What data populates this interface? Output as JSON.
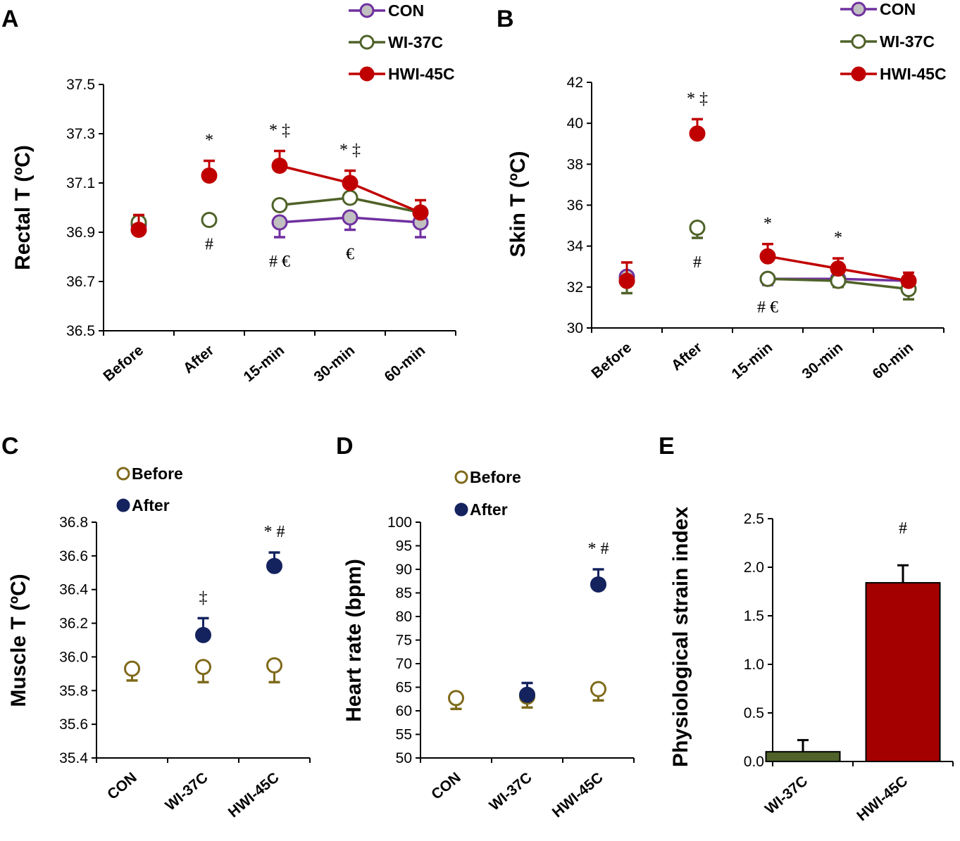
{
  "chart_data": [
    {
      "panel": "A",
      "type": "line",
      "ylabel": "Rectal T (ºC)",
      "ylim": [
        36.5,
        37.5
      ],
      "yticks": [
        "36.5",
        "36.7",
        "36.9",
        "37.1",
        "37.3",
        "37.5"
      ],
      "categories": [
        "Before",
        "After",
        "15-min",
        "30-min",
        "60-min"
      ],
      "legend_position": "top-right",
      "series": [
        {
          "name": "CON",
          "color": "#7030a0",
          "fill": "#c0c0c0",
          "values": [
            36.93,
            null,
            36.94,
            36.96,
            36.94
          ],
          "sem": [
            0.02,
            null,
            0.06,
            0.05,
            0.06
          ],
          "err_dir": "down",
          "connect_from": 2
        },
        {
          "name": "WI-37C",
          "color": "#4f6228",
          "fill": "#ffffff",
          "values": [
            36.94,
            36.95,
            37.01,
            37.04,
            36.98
          ],
          "sem": [
            0.01,
            0.0,
            0.0,
            0.0,
            0.0
          ],
          "err_dir": "up",
          "connect_from": 2
        },
        {
          "name": "HWI-45C",
          "color": "#c00000",
          "fill": "#c00000",
          "values": [
            36.91,
            37.13,
            37.17,
            37.1,
            36.98
          ],
          "sem": [
            0.06,
            0.06,
            0.06,
            0.05,
            0.05
          ],
          "err_dir": "up",
          "connect_from": 2
        }
      ],
      "annotations": [
        {
          "category": "After",
          "series": "HWI-45C",
          "side": "above",
          "text": "*"
        },
        {
          "category": "After",
          "series": "WI-37C",
          "side": "below",
          "text": "#"
        },
        {
          "category": "15-min",
          "series": "HWI-45C",
          "side": "above",
          "text": "* ‡"
        },
        {
          "category": "15-min",
          "series": "CON",
          "side": "below",
          "text": "# €"
        },
        {
          "category": "30-min",
          "series": "HWI-45C",
          "side": "above",
          "text": "* ‡"
        },
        {
          "category": "30-min",
          "series": "CON",
          "side": "below",
          "text": "€"
        }
      ]
    },
    {
      "panel": "B",
      "type": "line",
      "ylabel": "Skin T (ºC)",
      "ylim": [
        30,
        42
      ],
      "yticks": [
        "30",
        "32",
        "34",
        "36",
        "38",
        "40",
        "42"
      ],
      "categories": [
        "Before",
        "After",
        "15-min",
        "30-min",
        "60-min"
      ],
      "legend_position": "top-right",
      "series": [
        {
          "name": "CON",
          "color": "#7030a0",
          "fill": "#c0c0c0",
          "values": [
            32.5,
            null,
            32.4,
            32.4,
            32.3
          ],
          "sem": [
            0.4,
            null,
            0.3,
            0.3,
            0.4
          ],
          "err_dir": "down",
          "connect_from": 2
        },
        {
          "name": "WI-37C",
          "color": "#4f6228",
          "fill": "#ffffff",
          "values": [
            32.3,
            34.9,
            32.4,
            32.3,
            31.9
          ],
          "sem": [
            0.6,
            0.5,
            0.2,
            0.3,
            0.5
          ],
          "err_dir": "down",
          "connect_from": 2
        },
        {
          "name": "HWI-45C",
          "color": "#c00000",
          "fill": "#c00000",
          "values": [
            32.3,
            39.5,
            33.5,
            32.9,
            32.3
          ],
          "sem": [
            0.9,
            0.7,
            0.6,
            0.5,
            0.4
          ],
          "err_dir": "up",
          "connect_from": 2
        }
      ],
      "annotations": [
        {
          "category": "After",
          "series": "HWI-45C",
          "side": "above",
          "text": "* ‡"
        },
        {
          "category": "After",
          "series": "WI-37C",
          "side": "below",
          "text": "#"
        },
        {
          "category": "15-min",
          "series": "HWI-45C",
          "side": "above",
          "text": "*"
        },
        {
          "category": "15-min",
          "series": "WI-37C",
          "side": "below",
          "text": "# €"
        },
        {
          "category": "30-min",
          "series": "HWI-45C",
          "side": "above",
          "text": "*"
        }
      ]
    },
    {
      "panel": "C",
      "type": "scatter",
      "ylabel": "Muscle T (ºC)",
      "ylim": [
        35.4,
        36.8
      ],
      "yticks": [
        "35.4",
        "35.6",
        "35.8",
        "36.0",
        "36.2",
        "36.4",
        "36.6",
        "36.8"
      ],
      "categories": [
        "CON",
        "WI-37C",
        "HWI-45C"
      ],
      "legend_position": "top-left",
      "series": [
        {
          "name": "Before",
          "color": "#7f6a1a",
          "fill": "#ffffff",
          "values": [
            35.93,
            35.94,
            35.95
          ],
          "sem": [
            0.07,
            0.09,
            0.1
          ],
          "err_dir": "down"
        },
        {
          "name": "After",
          "color": "#14235e",
          "fill": "#14235e",
          "values": [
            null,
            36.13,
            36.54
          ],
          "sem": [
            null,
            0.1,
            0.08
          ],
          "err_dir": "up"
        }
      ],
      "annotations": [
        {
          "category": "WI-37C",
          "series": "After",
          "side": "above",
          "text": "‡"
        },
        {
          "category": "HWI-45C",
          "series": "After",
          "side": "above",
          "text": "* #"
        }
      ]
    },
    {
      "panel": "D",
      "type": "scatter",
      "ylabel": "Heart rate (bpm)",
      "ylim": [
        50,
        100
      ],
      "yticks": [
        "50",
        "55",
        "60",
        "65",
        "70",
        "75",
        "80",
        "85",
        "90",
        "95",
        "100"
      ],
      "categories": [
        "CON",
        "WI-37C",
        "HWI-45C"
      ],
      "legend_position": "top-left",
      "series": [
        {
          "name": "Before",
          "color": "#7f6a1a",
          "fill": "#ffffff",
          "values": [
            62.7,
            63.0,
            64.6
          ],
          "sem": [
            2.3,
            2.3,
            2.4
          ],
          "err_dir": "down"
        },
        {
          "name": "After",
          "color": "#14235e",
          "fill": "#14235e",
          "values": [
            null,
            63.4,
            86.8
          ],
          "sem": [
            null,
            2.5,
            3.2
          ],
          "err_dir": "up"
        }
      ],
      "annotations": [
        {
          "category": "HWI-45C",
          "series": "After",
          "side": "above",
          "text": "* #"
        }
      ]
    },
    {
      "panel": "E",
      "type": "bar",
      "ylabel": "Physiological strain index",
      "ylim": [
        0,
        2.5
      ],
      "yticks": [
        "0.0",
        "0.5",
        "1.0",
        "1.5",
        "2.0",
        "2.5"
      ],
      "categories": [
        "WI-37C",
        "HWI-45C"
      ],
      "values": [
        0.1,
        1.84
      ],
      "sem": [
        0.12,
        0.18
      ],
      "colors": [
        "#4f6228",
        "#a50000"
      ],
      "annotations": [
        {
          "category": "HWI-45C",
          "side": "above",
          "text": "#"
        }
      ]
    }
  ]
}
